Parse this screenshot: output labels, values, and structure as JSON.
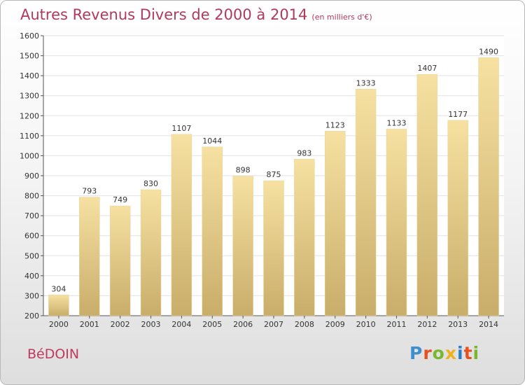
{
  "title": "Autres Revenus Divers de 2000 à 2014",
  "unit_note": "(en milliers d'€)",
  "place": "BéDOIN",
  "logo": {
    "text": "Proxiti",
    "colors": [
      "#3f8fd0",
      "#e8501e",
      "#79b82e",
      "#f0b21c",
      "#2c7ec6",
      "#e8501e",
      "#79b82e"
    ]
  },
  "colors": {
    "title": "#b03a5e",
    "bar_top": "#f6e1a2",
    "bar_bottom": "#c9ad6a",
    "grid": "#e2e2e2"
  },
  "chart_data": {
    "type": "bar",
    "title": "Autres Revenus Divers de 2000 à 2014",
    "xlabel": "",
    "ylabel": "",
    "categories": [
      "2000",
      "2001",
      "2002",
      "2003",
      "2004",
      "2005",
      "2006",
      "2007",
      "2008",
      "2009",
      "2010",
      "2011",
      "2012",
      "2013",
      "2014"
    ],
    "values": [
      304,
      793,
      749,
      830,
      1107,
      1044,
      898,
      875,
      983,
      1123,
      1333,
      1133,
      1407,
      1177,
      1490
    ],
    "ylim": [
      200,
      1600
    ],
    "yticks": [
      200,
      300,
      400,
      500,
      600,
      700,
      800,
      900,
      1000,
      1100,
      1200,
      1300,
      1400,
      1500,
      1600
    ],
    "grid": true,
    "data_labels": true
  }
}
